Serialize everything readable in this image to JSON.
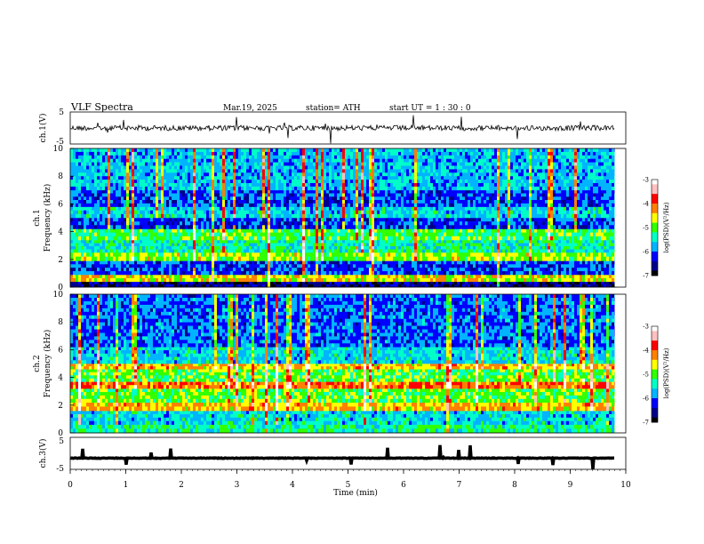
{
  "header": {
    "title": "VLF  Spectra",
    "date": "Mar.19, 2025",
    "station": "station= ATH",
    "start": "start  UT  =    1  : 30 : 0"
  },
  "colors": {
    "cmap": [
      "#000000",
      "#00008b",
      "#0000ff",
      "#00b4ff",
      "#00ffc8",
      "#32ff00",
      "#ffff00",
      "#ff8000",
      "#ff0000",
      "#ffc0c0",
      "#ffffff"
    ],
    "trace": "#000000"
  },
  "chart_data": [
    {
      "type": "line",
      "panel": "ch1-waveform",
      "ylabel": "ch.1(V)",
      "ylim": [
        -5,
        5
      ],
      "yticks": [
        5,
        -5
      ],
      "baseline": 0,
      "xlim": [
        0,
        10
      ]
    },
    {
      "type": "heatmap",
      "panel": "ch1-spectrogram",
      "ylabel": "ch.1\nFrequency  (kHz)",
      "ylim": [
        0,
        10
      ],
      "yticks": [
        0,
        2,
        4,
        6,
        8,
        10
      ],
      "xlim": [
        0,
        10
      ],
      "data_end_min": 9.8,
      "colorbar": {
        "label": "log(PSD)(V²/Hz)",
        "range": [
          -7,
          -3
        ],
        "ticks": [
          -3,
          -4,
          -5,
          -6,
          -7
        ]
      },
      "bands": [
        {
          "f": [
            0.0,
            0.4
          ],
          "level": -6.6
        },
        {
          "f": [
            0.4,
            0.9
          ],
          "level": -4.6
        },
        {
          "f": [
            0.9,
            1.9
          ],
          "level": -6.1
        },
        {
          "f": [
            1.9,
            2.5
          ],
          "level": -4.8
        },
        {
          "f": [
            2.5,
            3.4
          ],
          "level": -5.4
        },
        {
          "f": [
            3.4,
            4.2
          ],
          "level": -5.1
        },
        {
          "f": [
            4.2,
            5.0
          ],
          "level": -6.2
        },
        {
          "f": [
            5.0,
            5.8
          ],
          "level": -5.6
        },
        {
          "f": [
            5.8,
            7.0
          ],
          "level": -6.1
        },
        {
          "f": [
            7.0,
            10.0
          ],
          "level": -5.7
        }
      ]
    },
    {
      "type": "heatmap",
      "panel": "ch2-spectrogram",
      "ylabel": "ch.2\nFrequency  (kHz)",
      "ylim": [
        0,
        10
      ],
      "yticks": [
        0,
        2,
        4,
        6,
        8,
        10
      ],
      "xlim": [
        0,
        10
      ],
      "data_end_min": 9.8,
      "colorbar": {
        "label": "log(PSD)(V²/Hz)",
        "range": [
          -7,
          -3
        ],
        "ticks": [
          -3,
          -4,
          -5,
          -6,
          -7
        ]
      },
      "bands": [
        {
          "f": [
            0.0,
            0.6
          ],
          "level": -5.3
        },
        {
          "f": [
            0.6,
            1.6
          ],
          "level": -5.6
        },
        {
          "f": [
            1.6,
            2.2
          ],
          "level": -4.4
        },
        {
          "f": [
            2.2,
            3.2
          ],
          "level": -5.0
        },
        {
          "f": [
            3.2,
            3.7
          ],
          "level": -4.1
        },
        {
          "f": [
            3.7,
            4.6
          ],
          "level": -5.0
        },
        {
          "f": [
            4.6,
            5.0
          ],
          "level": -4.4
        },
        {
          "f": [
            5.0,
            6.2
          ],
          "level": -5.6
        },
        {
          "f": [
            6.2,
            10.0
          ],
          "level": -6.0
        }
      ]
    },
    {
      "type": "line",
      "panel": "ch3-waveform",
      "ylabel": "ch.3(V)",
      "ylim": [
        -5,
        5
      ],
      "yticks": [
        5,
        -5
      ],
      "baseline": -1.5,
      "xlim": [
        0,
        10
      ],
      "xlabel": "Time  (min)",
      "xticks": [
        0,
        1,
        2,
        3,
        4,
        5,
        6,
        7,
        8,
        9,
        10
      ]
    }
  ]
}
